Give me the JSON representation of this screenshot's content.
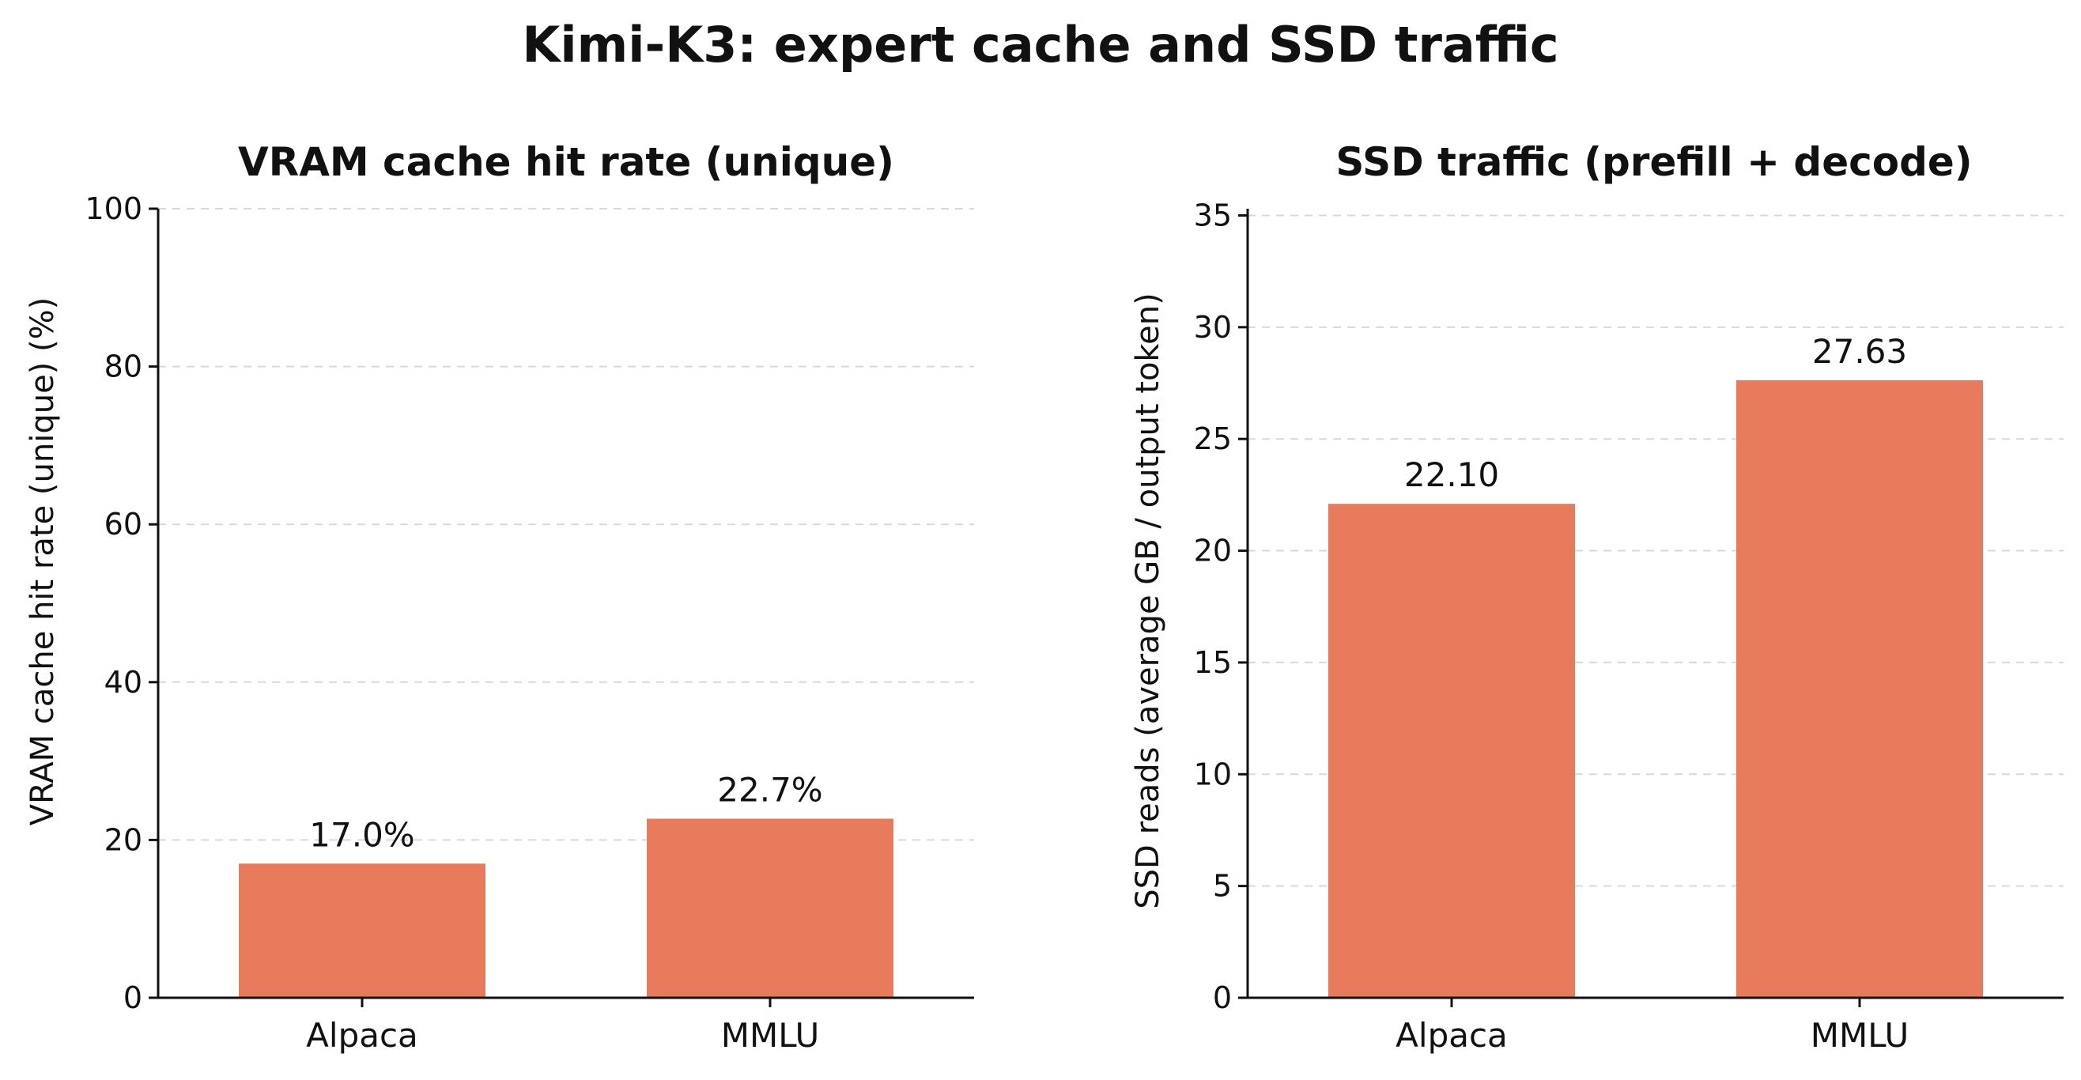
{
  "figure": {
    "suptitle": "Kimi-K3: expert cache and SSD traffic",
    "bar_color": "#e87b5b"
  },
  "chart_data": [
    {
      "type": "bar",
      "title": "VRAM cache hit rate (unique)",
      "ylabel": "VRAM cache hit rate (unique) (%)",
      "xlabel": "",
      "categories": [
        "Alpaca",
        "MMLU"
      ],
      "values": [
        17.0,
        22.7
      ],
      "value_labels": [
        "17.0%",
        "22.7%"
      ],
      "ylim": [
        0,
        100
      ],
      "yticks": [
        0,
        20,
        40,
        60,
        80,
        100
      ],
      "ytick_labels": [
        "0",
        "20",
        "40",
        "60",
        "80",
        "100"
      ],
      "grid": "y, dashed",
      "color": "#e87b5b"
    },
    {
      "type": "bar",
      "title": "SSD traffic (prefill + decode)",
      "ylabel": "SSD reads (average GB / output token)",
      "xlabel": "",
      "categories": [
        "Alpaca",
        "MMLU"
      ],
      "values": [
        22.1,
        27.63
      ],
      "value_labels": [
        "22.10",
        "27.63"
      ],
      "ylim": [
        0,
        35.3
      ],
      "yticks": [
        0,
        5,
        10,
        15,
        20,
        25,
        30,
        35
      ],
      "ytick_labels": [
        "0",
        "5",
        "10",
        "15",
        "20",
        "25",
        "30",
        "35"
      ],
      "grid": "y, dashed",
      "color": "#e87b5b"
    }
  ]
}
